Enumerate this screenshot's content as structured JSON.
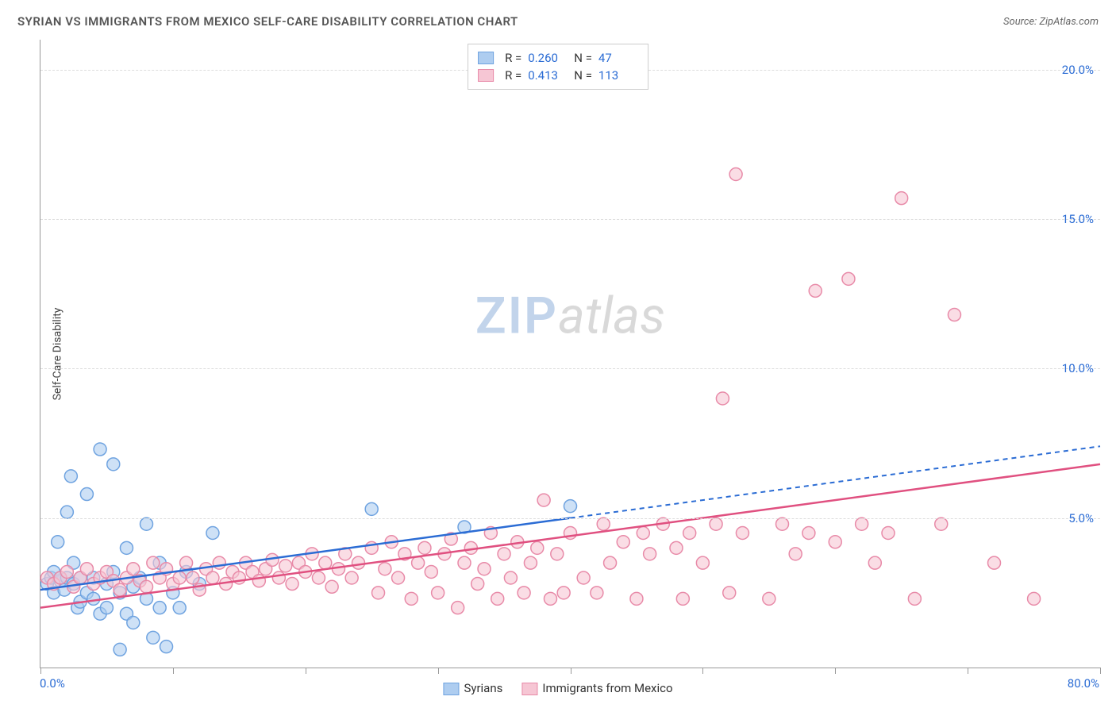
{
  "header": {
    "title": "SYRIAN VS IMMIGRANTS FROM MEXICO SELF-CARE DISABILITY CORRELATION CHART",
    "source_prefix": "Source: ",
    "source": "ZipAtlas.com"
  },
  "watermark": {
    "part1": "ZIP",
    "part2": "atlas"
  },
  "chart": {
    "type": "scatter",
    "ylabel": "Self-Care Disability",
    "xlim": [
      0,
      80
    ],
    "ylim": [
      0,
      21
    ],
    "x_axis_labels": [
      {
        "value": 0,
        "text": "0.0%"
      },
      {
        "value": 80,
        "text": "80.0%"
      }
    ],
    "x_ticks": [
      0,
      10,
      20,
      30,
      40,
      50,
      60,
      70,
      80
    ],
    "y_grid": [
      {
        "value": 5,
        "label": "5.0%"
      },
      {
        "value": 10,
        "label": "10.0%"
      },
      {
        "value": 15,
        "label": "15.0%"
      },
      {
        "value": 20,
        "label": "20.0%"
      }
    ],
    "background_color": "#ffffff",
    "grid_color": "#dddddd",
    "axis_color": "#999999",
    "tick_label_color": "#2b6cd4",
    "marker_radius": 8,
    "marker_stroke_width": 1.5,
    "series": [
      {
        "id": "syrians",
        "label": "Syrians",
        "fill": "#aecdf0",
        "stroke": "#6fa3e0",
        "line_color": "#2b6cd4",
        "line_dash_after_x": 40,
        "R": "0.260",
        "N": "47",
        "trend": {
          "x1": 0,
          "y1": 2.6,
          "x2": 80,
          "y2": 7.4
        },
        "points": [
          [
            0.5,
            2.8
          ],
          [
            0.8,
            3.0
          ],
          [
            1.0,
            2.5
          ],
          [
            1.0,
            3.2
          ],
          [
            1.3,
            4.2
          ],
          [
            1.5,
            2.9
          ],
          [
            1.5,
            3.0
          ],
          [
            1.8,
            2.6
          ],
          [
            2.0,
            5.2
          ],
          [
            2.0,
            3.0
          ],
          [
            2.3,
            6.4
          ],
          [
            2.5,
            2.8
          ],
          [
            2.5,
            3.5
          ],
          [
            2.8,
            2.0
          ],
          [
            3.0,
            3.0
          ],
          [
            3.0,
            2.2
          ],
          [
            3.5,
            5.8
          ],
          [
            3.5,
            2.5
          ],
          [
            4.0,
            3.0
          ],
          [
            4.0,
            2.3
          ],
          [
            4.5,
            1.8
          ],
          [
            4.5,
            7.3
          ],
          [
            5.0,
            2.0
          ],
          [
            5.0,
            2.8
          ],
          [
            5.5,
            6.8
          ],
          [
            5.5,
            3.2
          ],
          [
            6.0,
            0.6
          ],
          [
            6.0,
            2.5
          ],
          [
            6.5,
            1.8
          ],
          [
            6.5,
            4.0
          ],
          [
            7.0,
            2.7
          ],
          [
            7.0,
            1.5
          ],
          [
            7.5,
            3.0
          ],
          [
            8.0,
            4.8
          ],
          [
            8.0,
            2.3
          ],
          [
            8.5,
            1.0
          ],
          [
            9.0,
            3.5
          ],
          [
            9.0,
            2.0
          ],
          [
            9.5,
            0.7
          ],
          [
            10.0,
            2.5
          ],
          [
            10.5,
            2.0
          ],
          [
            11.0,
            3.2
          ],
          [
            12.0,
            2.8
          ],
          [
            13.0,
            4.5
          ],
          [
            25.0,
            5.3
          ],
          [
            32.0,
            4.7
          ],
          [
            40.0,
            5.4
          ]
        ]
      },
      {
        "id": "mexico",
        "label": "Immigrants from Mexico",
        "fill": "#f6c6d4",
        "stroke": "#e88aa8",
        "line_color": "#e05080",
        "line_dash_after_x": 80,
        "R": "0.413",
        "N": "113",
        "trend": {
          "x1": 0,
          "y1": 2.0,
          "x2": 80,
          "y2": 6.8
        },
        "points": [
          [
            0.5,
            3.0
          ],
          [
            1.0,
            2.8
          ],
          [
            1.5,
            3.0
          ],
          [
            2.0,
            3.2
          ],
          [
            2.5,
            2.7
          ],
          [
            3.0,
            3.0
          ],
          [
            3.5,
            3.3
          ],
          [
            4.0,
            2.8
          ],
          [
            4.5,
            3.0
          ],
          [
            5.0,
            3.2
          ],
          [
            5.5,
            2.9
          ],
          [
            6.0,
            2.6
          ],
          [
            6.5,
            3.0
          ],
          [
            7.0,
            3.3
          ],
          [
            7.5,
            2.9
          ],
          [
            8.0,
            2.7
          ],
          [
            8.5,
            3.5
          ],
          [
            9.0,
            3.0
          ],
          [
            9.5,
            3.3
          ],
          [
            10.0,
            2.8
          ],
          [
            10.5,
            3.0
          ],
          [
            11.0,
            3.5
          ],
          [
            11.5,
            3.0
          ],
          [
            12.0,
            2.6
          ],
          [
            12.5,
            3.3
          ],
          [
            13.0,
            3.0
          ],
          [
            13.5,
            3.5
          ],
          [
            14.0,
            2.8
          ],
          [
            14.5,
            3.2
          ],
          [
            15.0,
            3.0
          ],
          [
            15.5,
            3.5
          ],
          [
            16.0,
            3.2
          ],
          [
            16.5,
            2.9
          ],
          [
            17.0,
            3.3
          ],
          [
            17.5,
            3.6
          ],
          [
            18.0,
            3.0
          ],
          [
            18.5,
            3.4
          ],
          [
            19.0,
            2.8
          ],
          [
            19.5,
            3.5
          ],
          [
            20.0,
            3.2
          ],
          [
            20.5,
            3.8
          ],
          [
            21.0,
            3.0
          ],
          [
            21.5,
            3.5
          ],
          [
            22.0,
            2.7
          ],
          [
            22.5,
            3.3
          ],
          [
            23.0,
            3.8
          ],
          [
            23.5,
            3.0
          ],
          [
            24.0,
            3.5
          ],
          [
            25.0,
            4.0
          ],
          [
            25.5,
            2.5
          ],
          [
            26.0,
            3.3
          ],
          [
            26.5,
            4.2
          ],
          [
            27.0,
            3.0
          ],
          [
            27.5,
            3.8
          ],
          [
            28.0,
            2.3
          ],
          [
            28.5,
            3.5
          ],
          [
            29.0,
            4.0
          ],
          [
            29.5,
            3.2
          ],
          [
            30.0,
            2.5
          ],
          [
            30.5,
            3.8
          ],
          [
            31.0,
            4.3
          ],
          [
            31.5,
            2.0
          ],
          [
            32.0,
            3.5
          ],
          [
            32.5,
            4.0
          ],
          [
            33.0,
            2.8
          ],
          [
            33.5,
            3.3
          ],
          [
            34.0,
            4.5
          ],
          [
            34.5,
            2.3
          ],
          [
            35.0,
            3.8
          ],
          [
            35.5,
            3.0
          ],
          [
            36.0,
            4.2
          ],
          [
            36.5,
            2.5
          ],
          [
            37.0,
            3.5
          ],
          [
            37.5,
            4.0
          ],
          [
            38.0,
            5.6
          ],
          [
            38.5,
            2.3
          ],
          [
            39.0,
            3.8
          ],
          [
            39.5,
            2.5
          ],
          [
            40.0,
            4.5
          ],
          [
            41.0,
            3.0
          ],
          [
            42.0,
            2.5
          ],
          [
            42.5,
            4.8
          ],
          [
            43.0,
            3.5
          ],
          [
            44.0,
            4.2
          ],
          [
            45.0,
            2.3
          ],
          [
            45.5,
            4.5
          ],
          [
            46.0,
            3.8
          ],
          [
            47.0,
            4.8
          ],
          [
            48.0,
            4.0
          ],
          [
            48.5,
            2.3
          ],
          [
            49.0,
            4.5
          ],
          [
            50.0,
            3.5
          ],
          [
            51.0,
            4.8
          ],
          [
            51.5,
            9.0
          ],
          [
            52.0,
            2.5
          ],
          [
            52.5,
            16.5
          ],
          [
            53.0,
            4.5
          ],
          [
            55.0,
            2.3
          ],
          [
            56.0,
            4.8
          ],
          [
            57.0,
            3.8
          ],
          [
            58.0,
            4.5
          ],
          [
            58.5,
            12.6
          ],
          [
            60.0,
            4.2
          ],
          [
            61.0,
            13.0
          ],
          [
            62.0,
            4.8
          ],
          [
            63.0,
            3.5
          ],
          [
            64.0,
            4.5
          ],
          [
            65.0,
            15.7
          ],
          [
            66.0,
            2.3
          ],
          [
            68.0,
            4.8
          ],
          [
            69.0,
            11.8
          ],
          [
            72.0,
            3.5
          ],
          [
            75.0,
            2.3
          ]
        ]
      }
    ]
  }
}
